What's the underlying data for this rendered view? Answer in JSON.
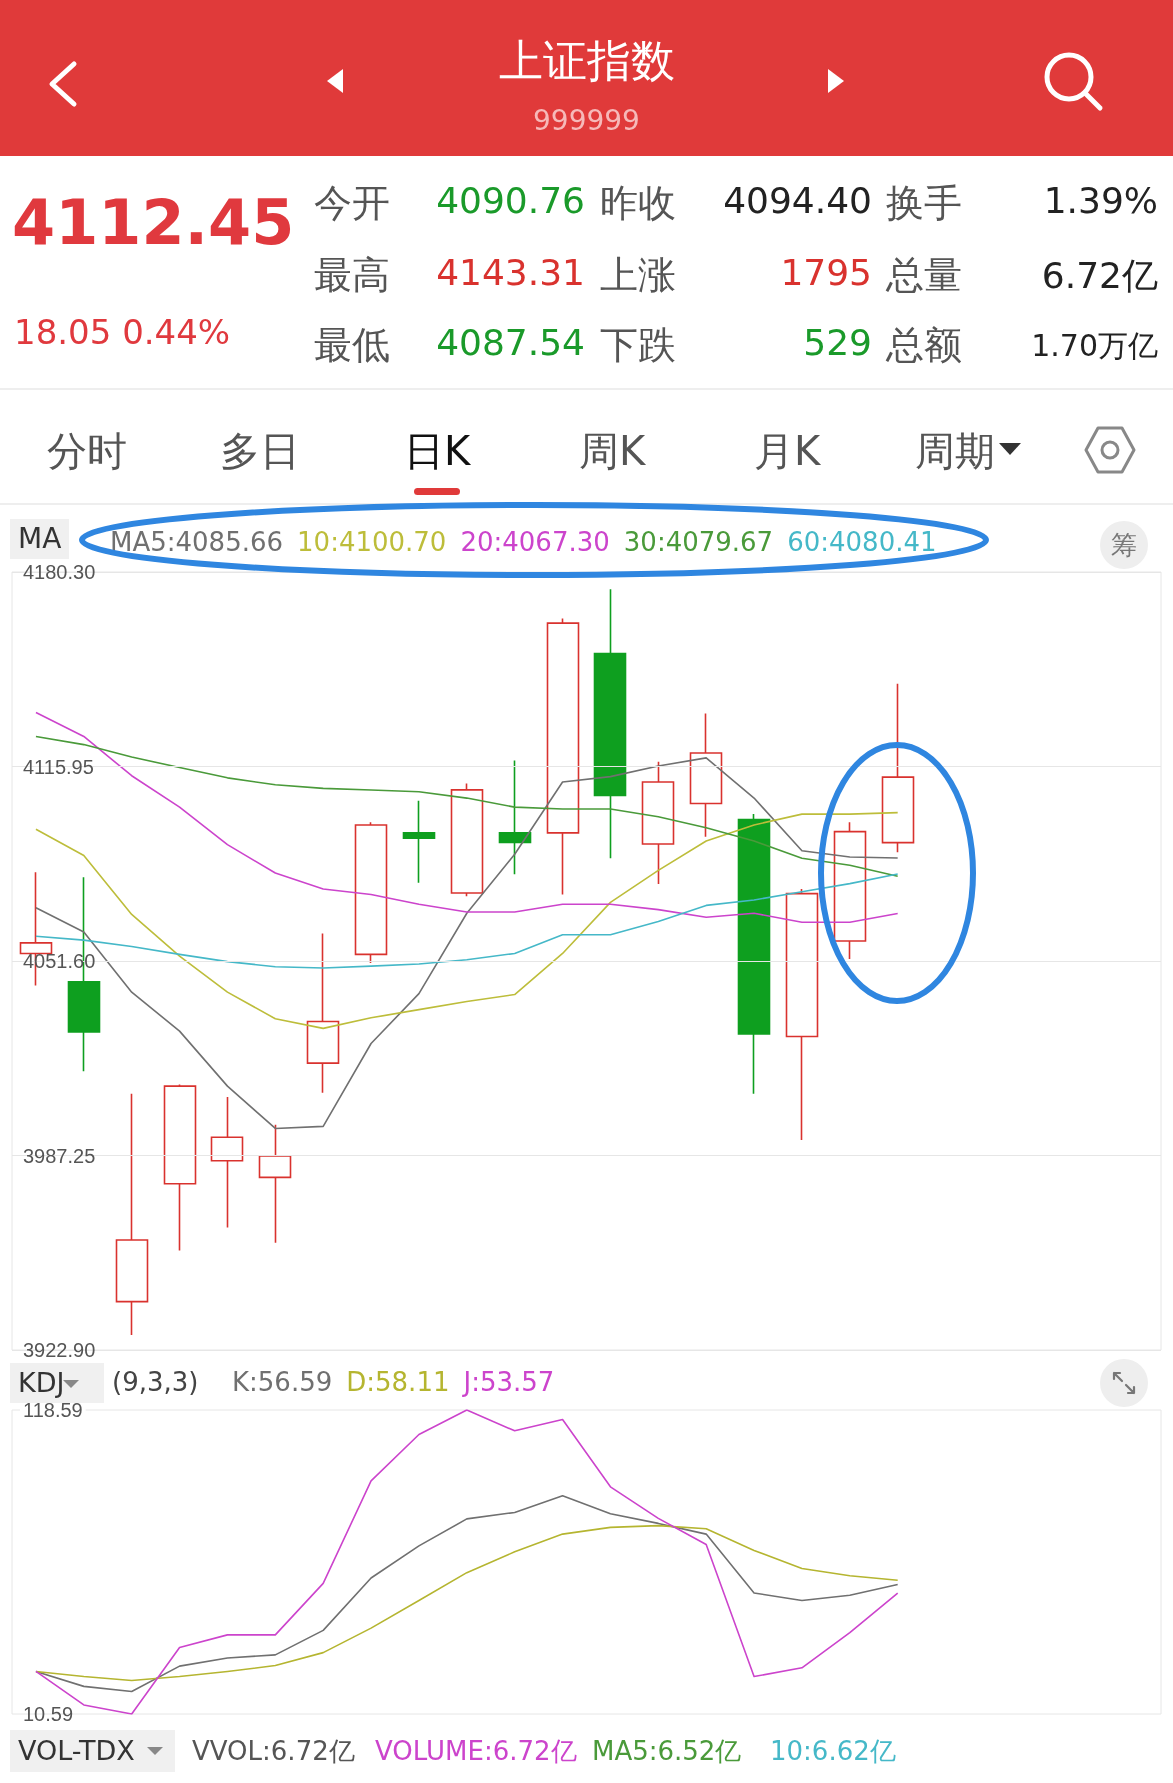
{
  "chart_data": [
    {
      "type": "other",
      "title": "上证指数",
      "subtitle": "999999",
      "annotations": [
        "4112.45",
        "18.05 0.44%",
        "今开",
        "4090.76",
        "昨收",
        "4094.40",
        "换手",
        "1.39%",
        "最高",
        "4143.31",
        "上涨",
        "1795",
        "总量",
        "6.72亿",
        "最低",
        "4087.54",
        "下跌",
        "529",
        "总额",
        "1.70万亿",
        "分时",
        "多日",
        "日K",
        "周K",
        "月K",
        "周期"
      ]
    },
    {
      "type": "candlestick",
      "categories": [
        null,
        null,
        null,
        null,
        null,
        null,
        null,
        null,
        null,
        null,
        null,
        null,
        null,
        null,
        null,
        null,
        null,
        null,
        null,
        null,
        null,
        null,
        null,
        null
      ],
      "ohlc": [
        [
          4054.1,
          4081.0,
          4043.5,
          4057.6
        ],
        [
          4044.7,
          4079.3,
          4015.1,
          4028.1
        ],
        [
          3938.9,
          4007.7,
          3927.9,
          3959.3
        ],
        [
          3977.9,
          4010.7,
          3955.8,
          4010.2
        ],
        [
          3985.5,
          4006.6,
          3963.4,
          3993.3
        ],
        [
          3980.0,
          3997.4,
          3958.4,
          3987.1
        ],
        [
          4017.8,
          4060.7,
          4008.0,
          4031.6
        ],
        [
          4053.8,
          4097.5,
          4050.9,
          4096.6
        ],
        [
          4094.0,
          4104.6,
          4077.5,
          4092.2
        ],
        [
          4074.1,
          4110.3,
          4073.0,
          4108.2
        ],
        [
          4094.0,
          4117.9,
          4080.3,
          4090.8
        ],
        [
          4094.0,
          4164.9,
          4073.6,
          4163.4
        ],
        [
          4153.3,
          4174.6,
          4085.6,
          4106.4
        ],
        [
          4090.3,
          4117.5,
          4077.1,
          4110.8
        ],
        [
          4103.7,
          4133.5,
          4092.7,
          4120.4
        ],
        [
          4098.4,
          4100.2,
          4007.7,
          4027.5
        ],
        [
          4026.6,
          4075.4,
          3992.4,
          4073.9
        ],
        [
          4058.2,
          4097.5,
          4052.3,
          4094.4
        ],
        [
          4090.76,
          4143.31,
          4087.54,
          4112.45
        ],
        null,
        null,
        null,
        null,
        null
      ],
      "colors": [
        "#d9322e",
        "#0e9f1f",
        "#d9322e",
        "#d9322e",
        "#d9322e",
        "#d9322e",
        "#d9322e",
        "#d9322e",
        "#0e9f1f",
        "#d9322e",
        "#0e9f1f",
        "#d9322e",
        "#0e9f1f",
        "#d9322e",
        "#d9322e",
        "#0e9f1f",
        "#d9322e",
        "#d9322e",
        "#d9322e",
        null,
        null,
        null,
        null,
        null
      ],
      "series": [
        {
          "type": "line",
          "name": "MA5:4085.66",
          "color": "#707070",
          "values": [
            4069.2,
            4061.2,
            4041.3,
            4028.4,
            4010.2,
            3996.2,
            3996.9,
            4024.3,
            4040.8,
            4067.4,
            4086.9,
            4110.8,
            4112.6,
            4116.1,
            4118.8,
            4105.5,
            4088.1,
            4086.0,
            4085.66,
            null,
            null,
            null,
            null,
            null
          ]
        },
        {
          "type": "line",
          "name": "10:4100.70",
          "color": "#bdbd3a",
          "values": [
            4095.2,
            4086.5,
            4067.0,
            4053.2,
            4041.3,
            4032.5,
            4029.3,
            4032.8,
            4035.5,
            4038.2,
            4040.5,
            4054.1,
            4071.0,
            4081.6,
            4091.3,
            4096.6,
            4100.2,
            4100.2,
            4100.7,
            null,
            null,
            null,
            null,
            null
          ]
        },
        {
          "type": "line",
          "name": "20:4067.30",
          "color": "#cc44cc",
          "values": [
            4133.8,
            4125.9,
            4112.9,
            4102.5,
            4090.1,
            4080.7,
            4075.4,
            4073.6,
            4070.4,
            4067.8,
            4067.8,
            4070.4,
            4070.4,
            4068.6,
            4066.1,
            4067.4,
            4064.4,
            4064.4,
            4067.3,
            null,
            null,
            null,
            null,
            null
          ]
        },
        {
          "type": "line",
          "name": "30:4079.67",
          "color": "#4a9a3a",
          "values": [
            4125.9,
            4123.2,
            4119.1,
            4115.6,
            4112.2,
            4109.9,
            4108.7,
            4108.2,
            4107.6,
            4105.5,
            4102.5,
            4101.9,
            4101.9,
            4099.3,
            4095.7,
            4091.3,
            4085.6,
            4083.3,
            4079.67,
            null,
            null,
            null,
            null,
            null
          ]
        },
        {
          "type": "line",
          "name": "60:4080.41",
          "color": "#45b8c8",
          "values": [
            4059.8,
            4058.5,
            4056.4,
            4053.8,
            4051.4,
            4049.7,
            4049.3,
            4049.9,
            4050.6,
            4052.0,
            4054.1,
            4060.3,
            4060.3,
            4064.7,
            4070.0,
            4071.8,
            4074.5,
            4077.2,
            4080.41,
            null,
            null,
            null,
            null,
            null
          ]
        }
      ],
      "ylim": [
        3922.9,
        4180.3
      ],
      "yticks": [
        {
          "value": 3922.9,
          "label": "3922.90"
        },
        {
          "value": 3987.25,
          "label": "3987.25"
        },
        {
          "value": 4051.6,
          "label": "4051.60"
        },
        {
          "value": 4115.95,
          "label": "4115.95"
        },
        {
          "value": 4180.3,
          "label": "4180.30"
        }
      ],
      "grid": "y",
      "marker": "none",
      "tick_labels": "y",
      "annotations": [
        "MA",
        "筹"
      ]
    },
    {
      "type": "line",
      "categories": [
        null,
        null,
        null,
        null,
        null,
        null,
        null,
        null,
        null,
        null,
        null,
        null,
        null,
        null,
        null,
        null,
        null,
        null,
        null,
        null,
        null,
        null,
        null,
        null
      ],
      "series": [
        {
          "name": "K:56.59",
          "color": "#707070",
          "values": [
            25.7,
            20.4,
            18.6,
            27.6,
            30.5,
            31.6,
            40.3,
            58.9,
            70.3,
            79.9,
            82.2,
            88.1,
            81.7,
            78.3,
            74.5,
            53.6,
            50.9,
            52.8,
            56.59,
            null,
            null,
            null,
            null,
            null
          ]
        },
        {
          "name": "D:58.11",
          "color": "#b5b530",
          "values": [
            25.7,
            23.9,
            22.5,
            23.9,
            25.7,
            27.8,
            32.4,
            41.1,
            50.9,
            60.8,
            68.2,
            74.5,
            76.9,
            77.5,
            76.4,
            68.7,
            62.3,
            59.7,
            58.11,
            null,
            null,
            null,
            null,
            null
          ]
        },
        {
          "name": "J:53.57",
          "color": "#cc44cc",
          "values": [
            25.7,
            13.8,
            10.59,
            34.2,
            38.7,
            38.7,
            57.0,
            93.4,
            109.9,
            118.59,
            111.2,
            115.2,
            91.3,
            80.1,
            70.8,
            23.9,
            27.0,
            39.5,
            53.57,
            null,
            null,
            null,
            null,
            null
          ]
        }
      ],
      "ylim": [
        10.59,
        118.59
      ],
      "yticks": [
        10.59,
        118.59
      ],
      "marker": "none",
      "tick_labels": "y",
      "annotations": [
        "KDJ",
        "(9,3,3)"
      ]
    },
    {
      "type": "other",
      "annotations": [
        "VOL-TDX",
        "VVOL:6.72亿",
        "VOLUME:6.72亿",
        "MA5:6.52亿",
        "10:6.62亿"
      ]
    }
  ]
}
